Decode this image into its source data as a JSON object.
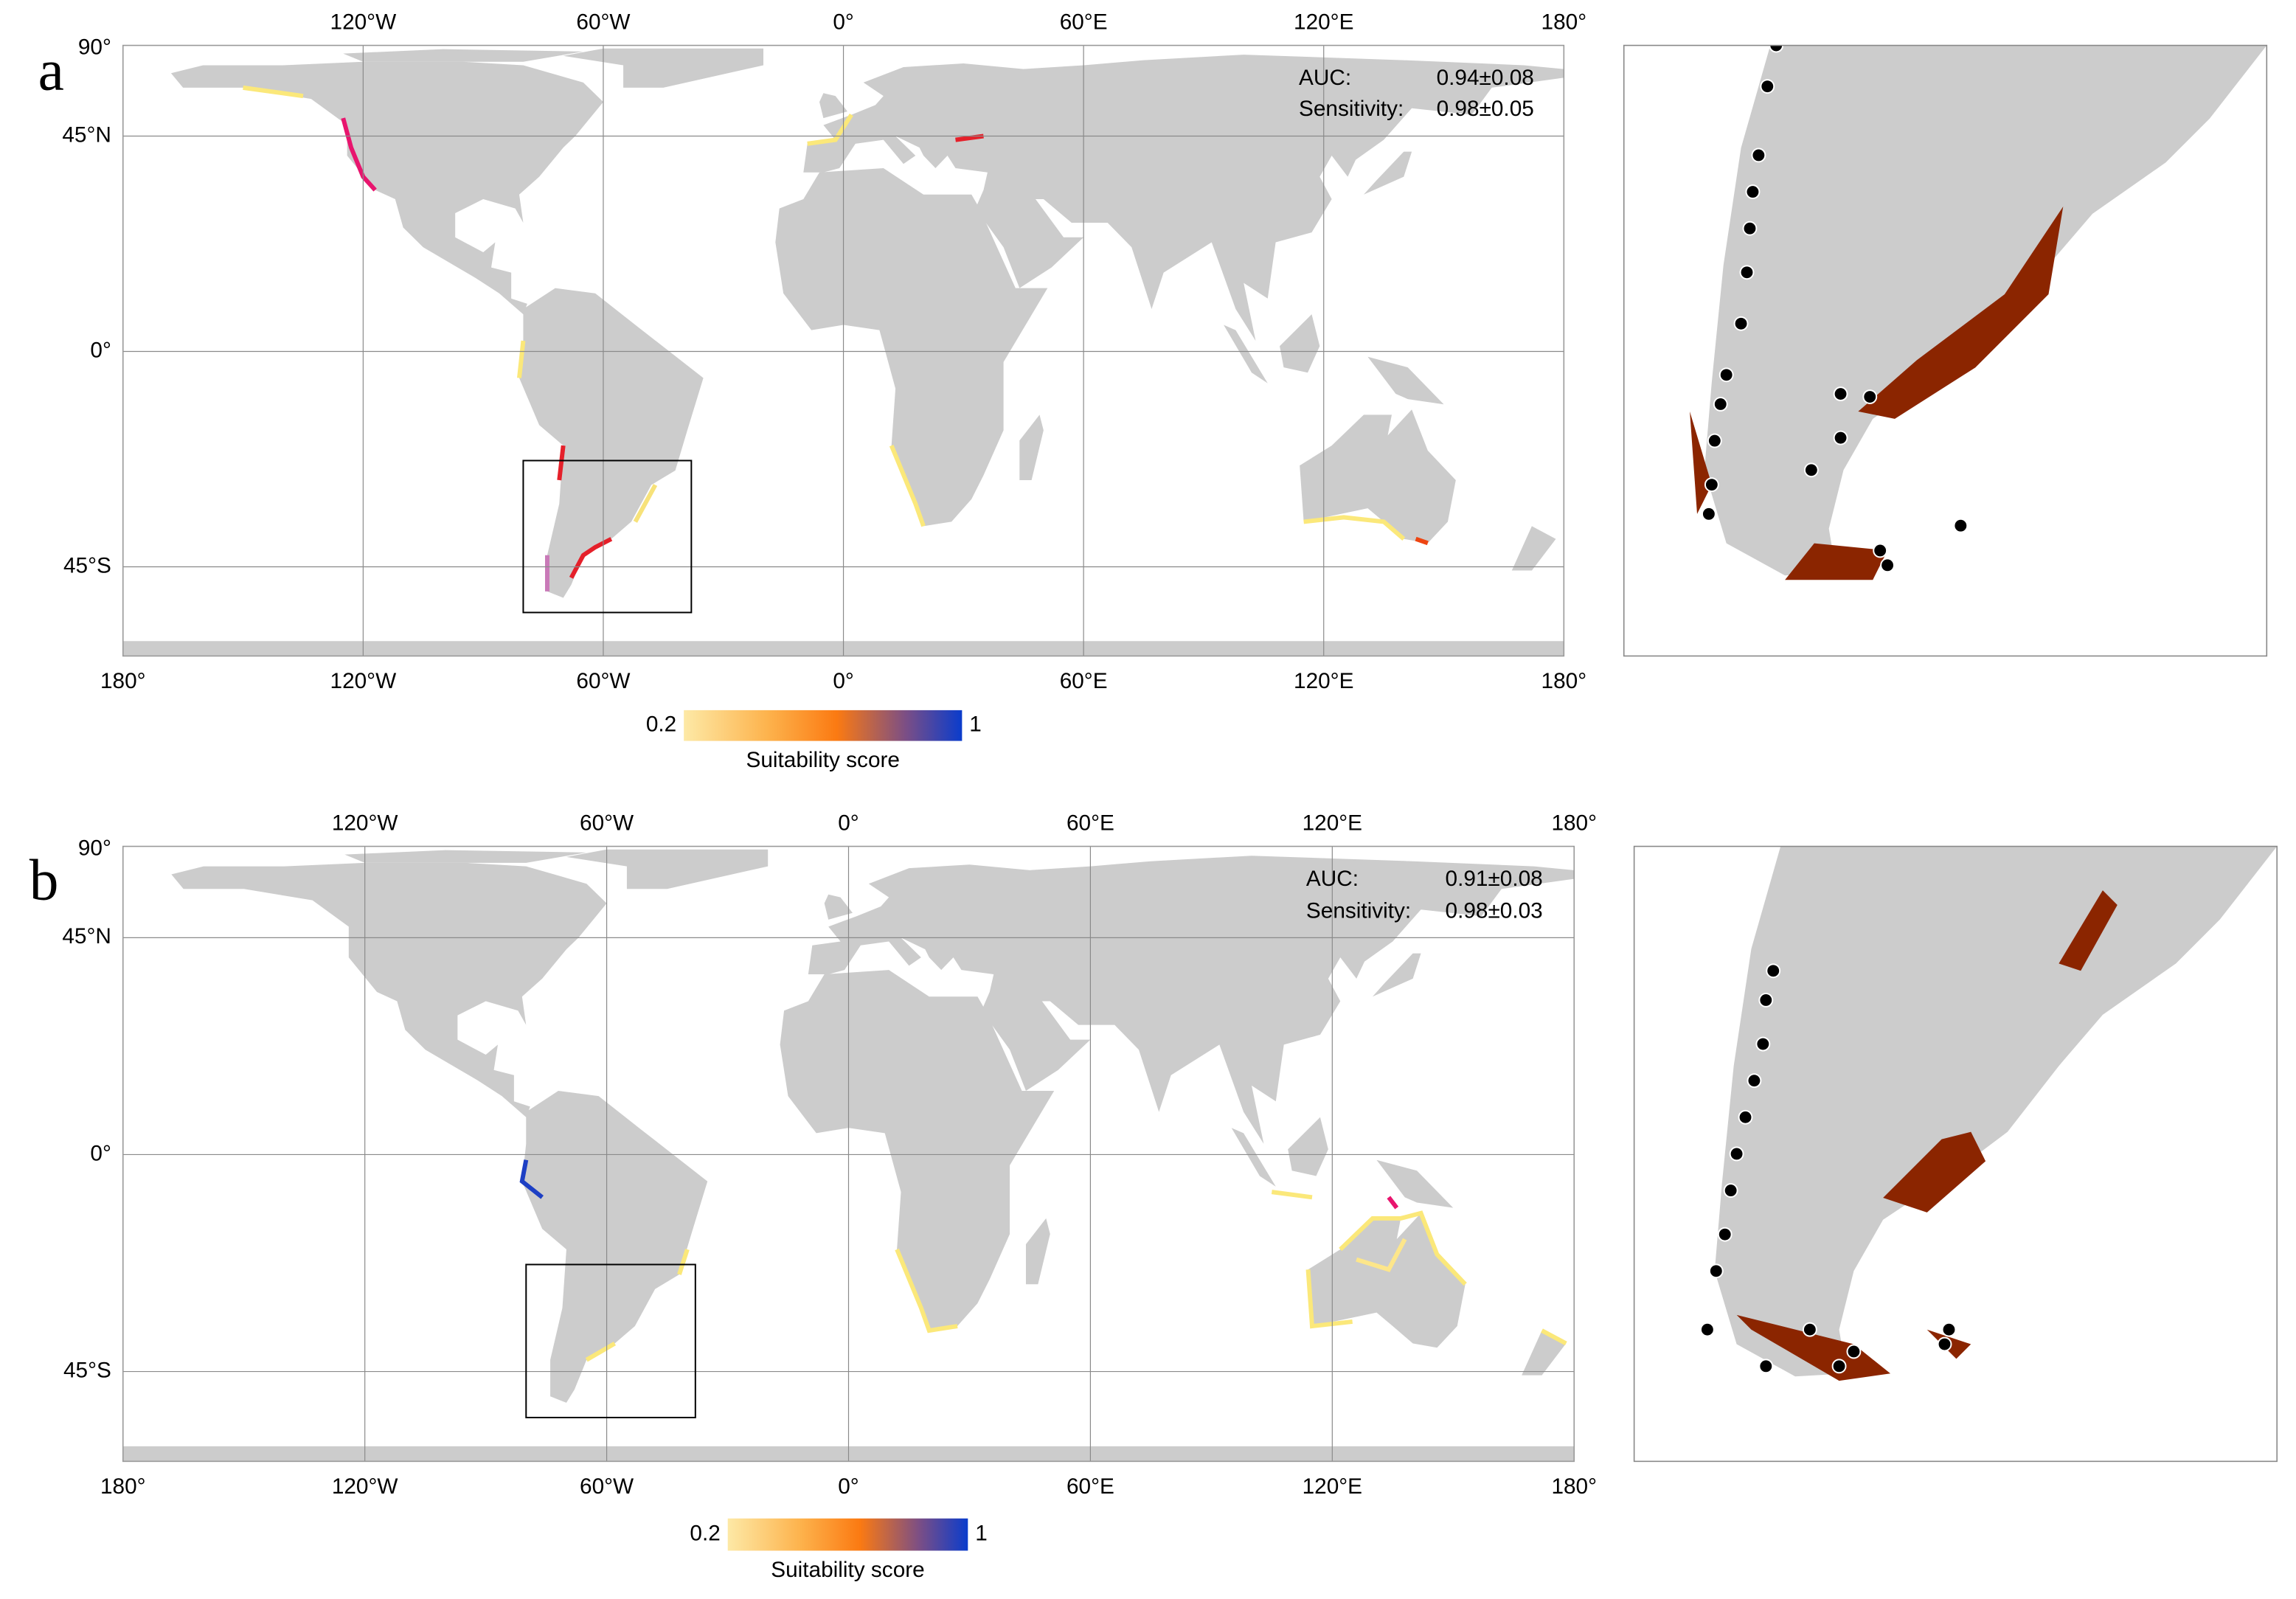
{
  "panels": [
    {
      "label": "a",
      "lon_labels": [
        "180°",
        "120°W",
        "60°W",
        "0°",
        "60°E",
        "120°E",
        "180°"
      ],
      "lat_labels": [
        "90°",
        "45°N",
        "0°",
        "45°S"
      ],
      "metrics": [
        {
          "name": "AUC:",
          "value": "0.94±0.08"
        },
        {
          "name": "Sensitivity:",
          "value": "0.98±0.05"
        }
      ],
      "colorbar": {
        "min": "0.2",
        "max": "1",
        "title": "Suitability score"
      }
    },
    {
      "label": "b",
      "lon_labels": [
        "180°",
        "120°W",
        "60°W",
        "0°",
        "60°E",
        "120°E",
        "180°"
      ],
      "lat_labels": [
        "90°",
        "45°N",
        "0°",
        "45°S"
      ],
      "metrics": [
        {
          "name": "AUC:",
          "value": "0.91±0.08"
        },
        {
          "name": "Sensitivity:",
          "value": "0.98±0.03"
        }
      ],
      "colorbar": {
        "min": "0.2",
        "max": "1",
        "title": "Suitability score"
      }
    }
  ]
}
